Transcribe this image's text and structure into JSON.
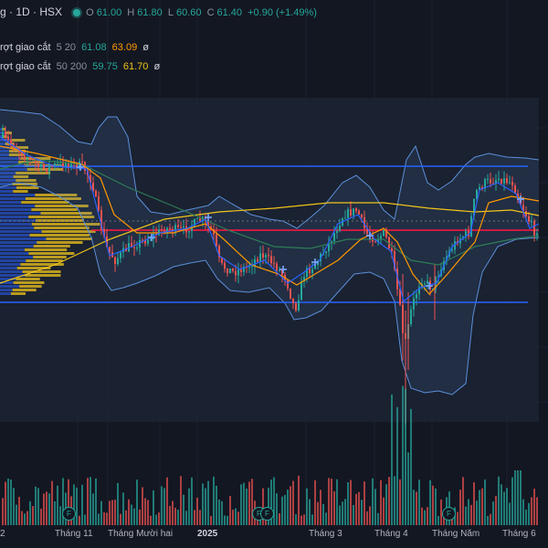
{
  "header": {
    "symbol": "g · 1D · HSX",
    "ohlc": [
      {
        "label": "O",
        "value": "61.00"
      },
      {
        "label": "H",
        "value": "61.80"
      },
      {
        "label": "L",
        "value": "60.60"
      },
      {
        "label": "C",
        "value": "61.40"
      }
    ],
    "change": "+0.90 (+1.49%)",
    "status_color": "#26a69a"
  },
  "indicators": [
    {
      "name": "rợt giao cắt",
      "params": "5 20",
      "value1": "61.08",
      "value2": "63.09",
      "eye": "ø"
    },
    {
      "name": "rợt giao cắt",
      "params": "50 200",
      "value1": "59.75",
      "value2": "61.70",
      "eye": "ø"
    }
  ],
  "x_axis": {
    "labels": [
      "2",
      "Tháng 11",
      "Tháng Mười hai",
      "2025",
      "Tháng 3",
      "Tháng 4",
      "Tháng Năm",
      "Tháng 6"
    ],
    "bold": [
      "2025"
    ]
  },
  "events": {
    "label": "F",
    "count": 4
  },
  "colors": {
    "up": "#26a69a",
    "down": "#ef5350",
    "ma_short": "#ff9800",
    "ma_long": "#f0c419",
    "bb": "#5b8fd9",
    "level": "#2962ff",
    "price": "#ff1744"
  }
}
